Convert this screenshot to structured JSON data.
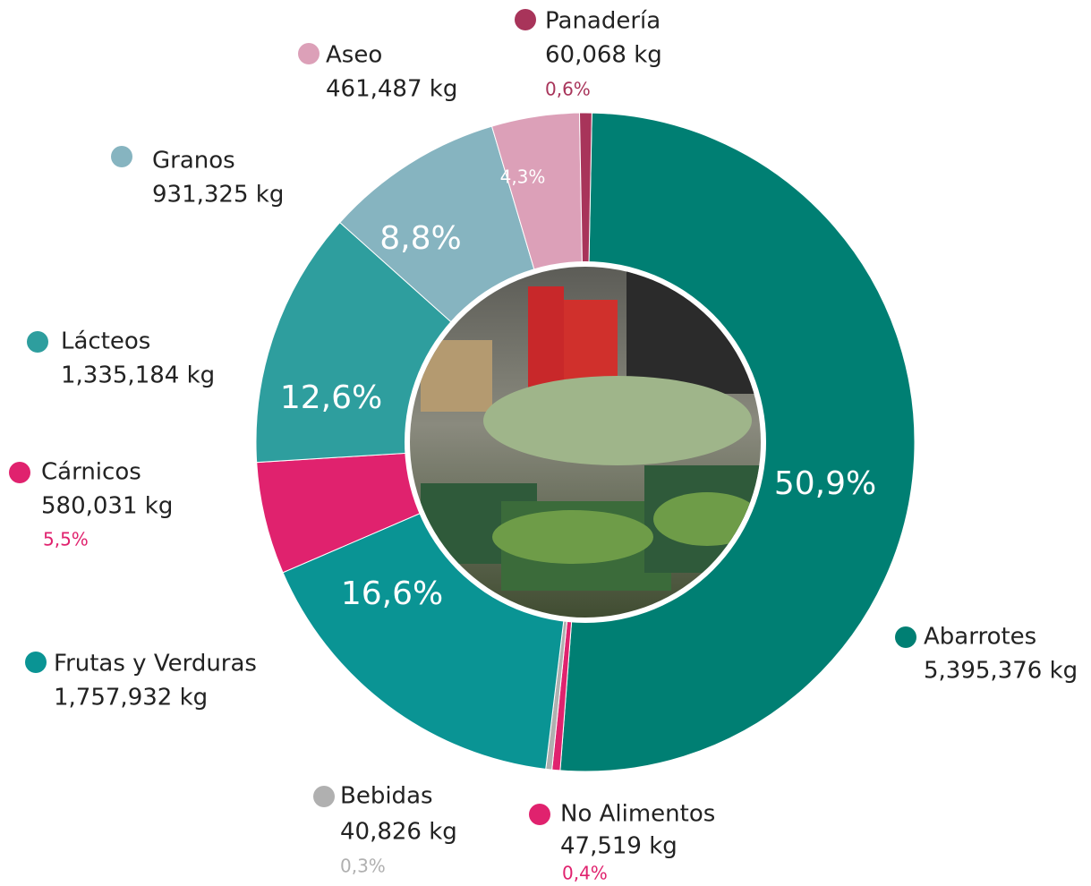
{
  "chart_data": {
    "type": "donut",
    "categories": [
      "Abarrotes",
      "No Alimentos",
      "Bebidas",
      "Frutas y Verduras",
      "Cárnicos",
      "Lácteos",
      "Granos",
      "Aseo",
      "Panadería"
    ],
    "values": [
      50.9,
      0.4,
      0.3,
      16.6,
      5.5,
      12.6,
      8.8,
      4.3,
      0.6
    ],
    "value_labels": [
      "50,9%",
      "0,4%",
      "0,3%",
      "16,6%",
      "5,5%",
      "12,6%",
      "8,8%",
      "4,3%",
      "0,6%"
    ],
    "weights": [
      5395376,
      47519,
      40826,
      1757932,
      580031,
      1335184,
      931325,
      461487,
      60068
    ],
    "weight_labels": [
      "5,395,376 kg",
      "47,519 kg",
      "40,826 kg",
      "1,757,932 kg",
      "580,031 kg",
      "1,335,184 kg",
      "931,325 kg",
      "461,487 kg",
      "60,068 kg"
    ],
    "colors": [
      "#007f73",
      "#e0226e",
      "#b0b0b0",
      "#0a9494",
      "#e0226e",
      "#2e9e9e",
      "#86b4c0",
      "#dca0b8",
      "#a8345a"
    ]
  }
}
